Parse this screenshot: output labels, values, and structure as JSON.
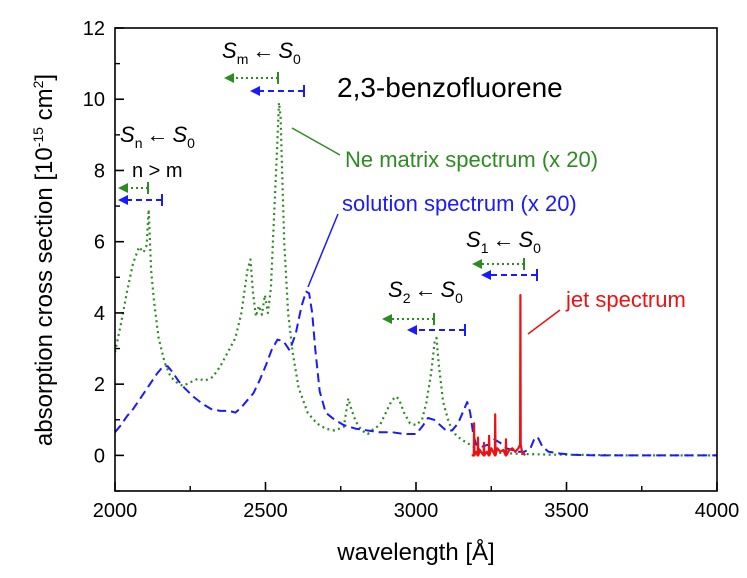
{
  "chart_data": {
    "type": "line",
    "title": "2,3-benzofluorene",
    "xlabel": "wavelength [Å]",
    "ylabel_parts": [
      "absorption cross section [10",
      "-15",
      " cm",
      "2",
      "]"
    ],
    "xlim": [
      2000,
      4000
    ],
    "ylim": [
      -1,
      12
    ],
    "xticks": [
      2000,
      2500,
      3000,
      3500,
      4000
    ],
    "yticks": [
      0,
      2,
      4,
      6,
      8,
      10,
      12
    ],
    "grid": false,
    "colors": {
      "ne": "#2e8b22",
      "solution": "#1a1aff",
      "jet": "#ee1111",
      "axis": "#000000"
    },
    "series": [
      {
        "name": "Ne matrix spectrum (x 20)",
        "style": "dotted",
        "x": [
          2000,
          2020,
          2040,
          2060,
          2080,
          2095,
          2105,
          2112,
          2120,
          2130,
          2145,
          2165,
          2185,
          2205,
          2225,
          2250,
          2275,
          2300,
          2325,
          2350,
          2375,
          2400,
          2420,
          2440,
          2450,
          2458,
          2468,
          2478,
          2488,
          2498,
          2508,
          2518,
          2528,
          2538,
          2545,
          2550,
          2555,
          2562,
          2575,
          2590,
          2610,
          2640,
          2670,
          2700,
          2730,
          2760,
          2775,
          2785,
          2800,
          2820,
          2840,
          2860,
          2880,
          2900,
          2920,
          2935,
          2945,
          2960,
          2980,
          3000,
          3020,
          3035,
          3050,
          3062,
          3068,
          3075,
          3090,
          3110,
          3130,
          3150,
          3170,
          3190,
          3210,
          3230,
          3260,
          3300,
          3350,
          3400,
          3450,
          3500,
          3600,
          3700,
          3800,
          3900,
          4000
        ],
        "y": [
          2.9,
          3.7,
          4.6,
          5.4,
          5.85,
          5.7,
          5.9,
          6.9,
          5.2,
          4.3,
          3.3,
          2.6,
          2.2,
          2.05,
          1.95,
          2.05,
          2.15,
          2.1,
          2.2,
          2.5,
          2.9,
          3.3,
          4.0,
          5.2,
          5.5,
          4.6,
          3.9,
          4.2,
          3.95,
          4.5,
          4.0,
          4.7,
          6.6,
          8.5,
          9.9,
          9.5,
          8.0,
          6.0,
          4.0,
          2.9,
          1.9,
          1.2,
          0.9,
          0.75,
          0.7,
          0.8,
          1.6,
          1.3,
          0.95,
          0.7,
          0.6,
          0.75,
          0.85,
          1.2,
          1.55,
          1.65,
          1.55,
          1.2,
          0.9,
          0.85,
          1.0,
          1.5,
          2.3,
          3.2,
          3.3,
          2.6,
          1.5,
          0.9,
          0.6,
          0.45,
          0.35,
          0.25,
          0.18,
          0.12,
          0.08,
          0.06,
          0.04,
          0.03,
          0.02,
          0.02,
          0.01,
          0.0,
          0.0,
          0.0,
          0.0
        ]
      },
      {
        "name": "solution spectrum (x 20)",
        "style": "dashed",
        "x": [
          2000,
          2020,
          2040,
          2060,
          2080,
          2100,
          2120,
          2140,
          2160,
          2175,
          2190,
          2210,
          2230,
          2260,
          2290,
          2320,
          2350,
          2380,
          2400,
          2420,
          2440,
          2460,
          2480,
          2500,
          2520,
          2540,
          2560,
          2580,
          2600,
          2620,
          2635,
          2645,
          2655,
          2665,
          2680,
          2700,
          2730,
          2760,
          2800,
          2840,
          2880,
          2920,
          2960,
          3000,
          3020,
          3040,
          3060,
          3080,
          3100,
          3120,
          3140,
          3160,
          3170,
          3180,
          3190,
          3200,
          3220,
          3240,
          3260,
          3280,
          3300,
          3320,
          3340,
          3360,
          3380,
          3395,
          3405,
          3420,
          3440,
          3480,
          3520,
          3600,
          3700,
          3800,
          3900,
          4000
        ],
        "y": [
          0.65,
          0.85,
          1.1,
          1.3,
          1.55,
          1.8,
          2.05,
          2.3,
          2.5,
          2.5,
          2.35,
          2.1,
          1.9,
          1.65,
          1.45,
          1.3,
          1.25,
          1.25,
          1.2,
          1.35,
          1.55,
          1.75,
          2.1,
          2.5,
          2.95,
          3.25,
          3.2,
          2.95,
          3.4,
          4.2,
          4.6,
          4.55,
          4.0,
          3.0,
          1.8,
          1.2,
          1.0,
          0.85,
          0.75,
          0.7,
          0.65,
          0.65,
          0.6,
          0.6,
          0.8,
          1.05,
          1.0,
          0.85,
          0.7,
          0.7,
          0.9,
          1.3,
          1.5,
          1.2,
          0.6,
          0.3,
          0.25,
          0.3,
          0.45,
          0.35,
          0.2,
          0.15,
          0.1,
          0.1,
          0.2,
          0.5,
          0.5,
          0.25,
          0.1,
          0.05,
          0.02,
          0.0,
          0.0,
          0.0,
          0.0,
          0.0
        ]
      },
      {
        "name": "jet spectrum",
        "style": "solid",
        "x": [
          3185,
          3192,
          3193,
          3194,
          3200,
          3205,
          3206,
          3207,
          3212,
          3220,
          3225,
          3226,
          3227,
          3235,
          3242,
          3243,
          3244,
          3250,
          3256,
          3262,
          3263,
          3264,
          3270,
          3280,
          3290,
          3298,
          3299,
          3300,
          3310,
          3320,
          3330,
          3340,
          3346,
          3347,
          3348,
          3352,
          3358,
          3362
        ],
        "y": [
          0.0,
          0.0,
          0.9,
          0.0,
          0.1,
          0.0,
          0.5,
          0.0,
          0.15,
          0.05,
          0.0,
          0.35,
          0.0,
          0.1,
          0.0,
          0.55,
          0.0,
          0.2,
          0.1,
          0.0,
          1.15,
          0.0,
          0.2,
          0.1,
          0.15,
          0.0,
          0.45,
          0.0,
          0.15,
          0.2,
          0.1,
          0.2,
          0.3,
          4.5,
          0.3,
          0.1,
          0.05,
          0.0
        ]
      }
    ]
  },
  "annotations": {
    "title": "2,3-benzofluorene",
    "ne_label": "Ne matrix spectrum (x 20)",
    "solution_label": "solution spectrum (x 20)",
    "jet_label": "jet spectrum",
    "condition": "n > m",
    "arrow": "←",
    "transitions": [
      {
        "upper": "S",
        "upper_sub": "m",
        "lower": "S",
        "lower_sub": "0"
      },
      {
        "upper": "S",
        "upper_sub": "n",
        "lower": "S",
        "lower_sub": "0"
      },
      {
        "upper": "S",
        "upper_sub": "2",
        "lower": "S",
        "lower_sub": "0"
      },
      {
        "upper": "S",
        "upper_sub": "1",
        "lower": "S",
        "lower_sub": "0"
      }
    ]
  }
}
